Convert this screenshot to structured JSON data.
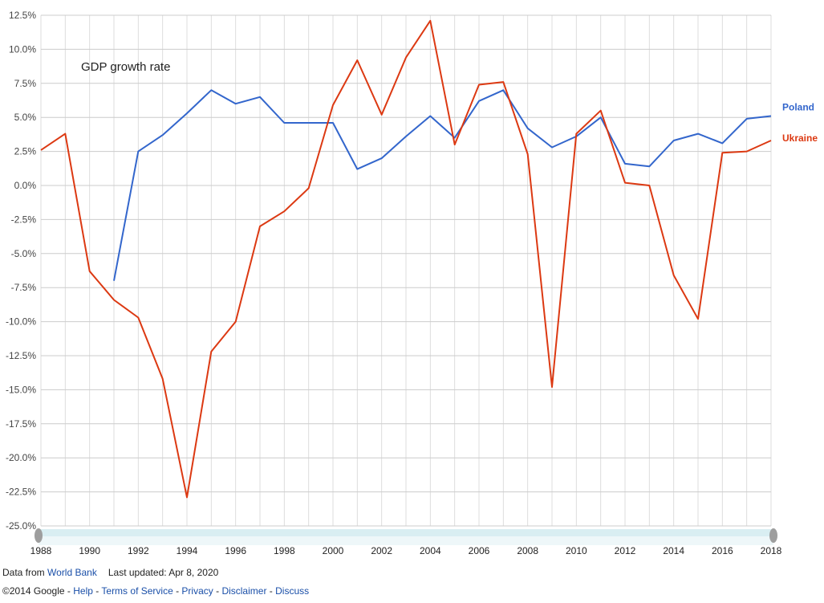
{
  "chart_data": {
    "type": "line",
    "annotation": "GDP growth rate",
    "x": [
      1988,
      1989,
      1990,
      1991,
      1992,
      1993,
      1994,
      1995,
      1996,
      1997,
      1998,
      1999,
      2000,
      2001,
      2002,
      2003,
      2004,
      2005,
      2006,
      2007,
      2008,
      2009,
      2010,
      2011,
      2012,
      2013,
      2014,
      2015,
      2016,
      2017,
      2018
    ],
    "series": [
      {
        "name": "Poland",
        "color": "#3366cc",
        "values": [
          null,
          null,
          null,
          -7.0,
          2.5,
          3.7,
          5.3,
          7.0,
          6.0,
          6.5,
          4.6,
          4.6,
          4.6,
          1.2,
          2.0,
          3.6,
          5.1,
          3.5,
          6.2,
          7.0,
          4.2,
          2.8,
          3.6,
          5.0,
          1.6,
          1.4,
          3.3,
          3.8,
          3.1,
          4.9,
          5.1
        ]
      },
      {
        "name": "Ukraine",
        "color": "#dc3912",
        "values": [
          2.6,
          3.8,
          -6.3,
          -8.4,
          -9.7,
          -14.2,
          -22.9,
          -12.2,
          -10.0,
          -3.0,
          -1.9,
          -0.2,
          5.9,
          9.2,
          5.2,
          9.4,
          12.1,
          3.0,
          7.4,
          7.6,
          2.3,
          -14.8,
          3.8,
          5.5,
          0.2,
          0.0,
          -6.6,
          -9.8,
          2.4,
          2.5,
          3.3
        ]
      }
    ],
    "ylim": [
      -25,
      12.5
    ],
    "yticks": [
      12.5,
      10,
      7.5,
      5,
      2.5,
      0,
      -2.5,
      -5,
      -7.5,
      -10,
      -12.5,
      -15,
      -17.5,
      -20,
      -22.5,
      -25
    ],
    "ytick_labels": [
      "12.5%",
      "10.0%",
      "7.5%",
      "5.0%",
      "2.5%",
      "0.0%",
      "-2.5%",
      "-5.0%",
      "-7.5%",
      "-10.0%",
      "-12.5%",
      "-15.0%",
      "-17.5%",
      "-20.0%",
      "-22.5%",
      "-25.0%"
    ],
    "xticks": [
      1988,
      1990,
      1992,
      1994,
      1996,
      1998,
      2000,
      2002,
      2004,
      2006,
      2008,
      2010,
      2012,
      2014,
      2016,
      2018
    ],
    "xlim": [
      1988,
      2018
    ],
    "grid": true,
    "legend": "right-of-lines"
  },
  "footer": {
    "data_from": "Data from",
    "source": "World Bank",
    "last_updated": "Last updated: Apr 8, 2020",
    "copyright": "©2014 Google",
    "sep": " - ",
    "links": [
      "Help",
      "Terms of Service",
      "Privacy",
      "Disclaimer",
      "Discuss"
    ]
  }
}
